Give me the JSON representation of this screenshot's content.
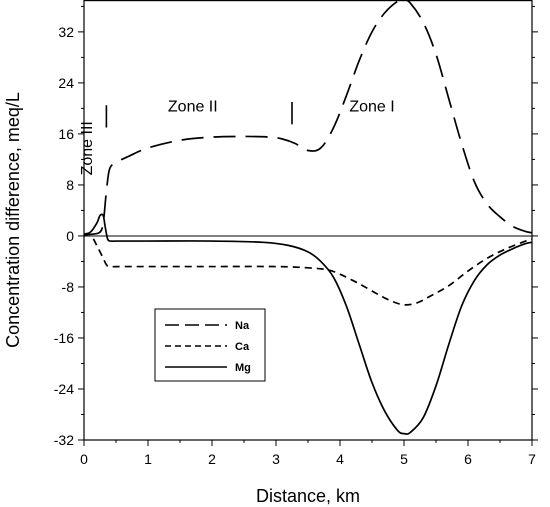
{
  "chart_data": {
    "type": "line",
    "xlabel": "Distance, km",
    "ylabel": "Concentration difference, meq/L",
    "xlim": [
      0,
      7
    ],
    "ylim": [
      -32,
      37
    ],
    "x_ticks": [
      0,
      1,
      2,
      3,
      4,
      5,
      6,
      7
    ],
    "y_ticks": [
      -32,
      -24,
      -16,
      -8,
      0,
      8,
      16,
      24,
      32
    ],
    "x_tick_labels": [
      "0",
      "1",
      "2",
      "3",
      "4",
      "5",
      "6",
      "7"
    ],
    "y_tick_labels": [
      "-32",
      "-24",
      "-16",
      "-8",
      "0",
      "8",
      "16",
      "24",
      "32"
    ],
    "zero_line": true,
    "grid": false,
    "legend_position": "lower-left",
    "annotations": [
      {
        "text": "Zone III",
        "x": 0.22,
        "y": 15,
        "rotated": true
      },
      {
        "text": "Zone II",
        "x": 1.7,
        "y": 19.5
      },
      {
        "text": "Zone I",
        "x": 4.5,
        "y": 19.5
      }
    ],
    "zone_markers": [
      {
        "x": 0.35,
        "y0": 17,
        "y1": 20.5
      },
      {
        "x": 3.25,
        "y0": 17.5,
        "y1": 21
      }
    ],
    "series": [
      {
        "name": "Na",
        "dash": "long-dash",
        "x": [
          0,
          0.15,
          0.25,
          0.3,
          0.35,
          0.4,
          0.5,
          0.7,
          1.0,
          1.5,
          2.0,
          2.5,
          2.9,
          3.1,
          3.3,
          3.5,
          3.7,
          3.9,
          4.1,
          4.3,
          4.5,
          4.7,
          4.9,
          5.0,
          5.1,
          5.3,
          5.5,
          5.7,
          5.9,
          6.1,
          6.3,
          6.5,
          6.7,
          6.9,
          7.0
        ],
        "values": [
          0.2,
          0.3,
          0.6,
          2,
          7,
          10.5,
          11.5,
          12.5,
          13.8,
          15,
          15.5,
          15.6,
          15.5,
          15.2,
          14.5,
          13.4,
          13.8,
          17,
          22,
          27.5,
          32,
          35,
          36.8,
          37,
          36.5,
          33.5,
          28.5,
          21.5,
          14.5,
          8.5,
          5,
          3,
          1.5,
          0.7,
          0.5
        ]
      },
      {
        "name": "Ca",
        "dash": "short-dash",
        "x": [
          0,
          0.1,
          0.2,
          0.3,
          0.35,
          0.4,
          0.6,
          1.0,
          2.0,
          3.0,
          3.5,
          3.8,
          4.0,
          4.3,
          4.6,
          4.8,
          5.0,
          5.2,
          5.4,
          5.7,
          6.0,
          6.3,
          6.6,
          6.9,
          7.0
        ],
        "values": [
          0,
          0.2,
          -1.5,
          -3.5,
          -4.5,
          -4.8,
          -4.8,
          -4.8,
          -4.8,
          -4.8,
          -5.0,
          -5.3,
          -6.0,
          -7.5,
          -9.2,
          -10.2,
          -10.8,
          -10.5,
          -9.5,
          -7.8,
          -5.5,
          -3.5,
          -2,
          -0.8,
          -0.5
        ]
      },
      {
        "name": "Mg",
        "dash": "solid",
        "x": [
          0,
          0.1,
          0.2,
          0.25,
          0.3,
          0.33,
          0.37,
          0.42,
          0.5,
          1.0,
          2.0,
          2.8,
          3.2,
          3.5,
          3.7,
          3.9,
          4.1,
          4.3,
          4.5,
          4.7,
          4.9,
          5.0,
          5.1,
          5.3,
          5.5,
          5.7,
          5.9,
          6.1,
          6.3,
          6.5,
          6.7,
          6.9,
          7.0
        ],
        "values": [
          0.3,
          0.6,
          2,
          3.2,
          3.2,
          1.5,
          -0.5,
          -0.8,
          -0.8,
          -0.8,
          -0.8,
          -1.0,
          -1.5,
          -2.5,
          -4.0,
          -6.5,
          -11,
          -17,
          -23,
          -27.5,
          -30.5,
          -31,
          -30.8,
          -28.5,
          -23.5,
          -17,
          -11,
          -7,
          -4.5,
          -3,
          -2,
          -1.2,
          -1
        ]
      }
    ]
  }
}
